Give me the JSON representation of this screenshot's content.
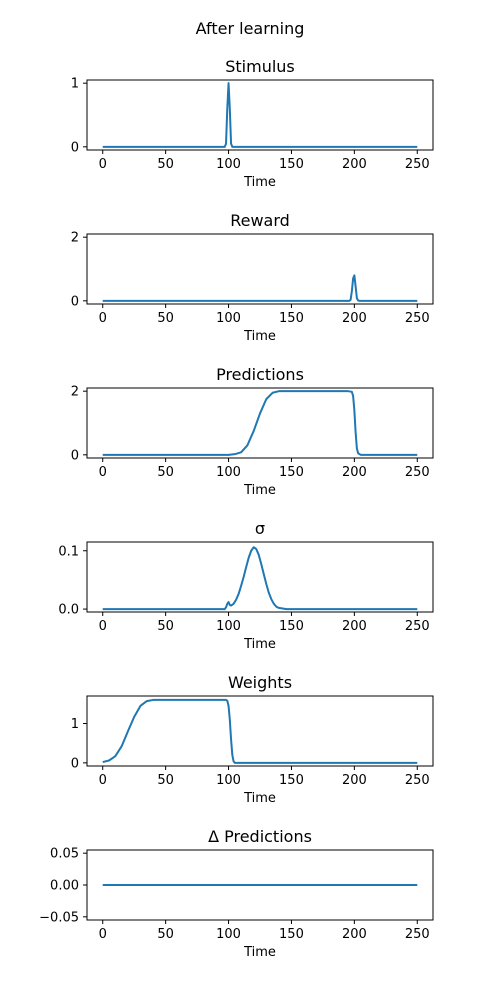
{
  "figure": {
    "title": "After learning"
  },
  "colors": {
    "line": "#1f77b4",
    "axes": "#000000",
    "background": "#ffffff"
  },
  "chart_data": [
    {
      "type": "line",
      "title": "Stimulus",
      "xlabel": "Time",
      "ylabel": "",
      "xlim": [
        -12.5,
        262.5
      ],
      "ylim": [
        -0.05,
        1.05
      ],
      "xticks": [
        0,
        50,
        100,
        150,
        200,
        250
      ],
      "yticks": [
        0,
        1
      ],
      "ytick_labels": [
        "0",
        "1"
      ],
      "grid": false,
      "series": [
        {
          "x": [
            0,
            97,
            98,
            99,
            100,
            101,
            102,
            103,
            250
          ],
          "y": [
            0,
            0,
            0.05,
            0.6,
            1.0,
            0.6,
            0.05,
            0,
            0
          ]
        }
      ]
    },
    {
      "type": "line",
      "title": "Reward",
      "xlabel": "Time",
      "ylabel": "",
      "xlim": [
        -12.5,
        262.5
      ],
      "ylim": [
        -0.1,
        2.1
      ],
      "xticks": [
        0,
        50,
        100,
        150,
        200,
        250
      ],
      "yticks": [
        0,
        2
      ],
      "ytick_labels": [
        "0",
        "2"
      ],
      "grid": false,
      "series": [
        {
          "x": [
            0,
            196,
            197,
            198,
            199,
            200,
            201,
            202,
            203,
            204,
            250
          ],
          "y": [
            0,
            0,
            0.03,
            0.3,
            0.7,
            0.8,
            0.45,
            0.08,
            0.01,
            0,
            0
          ]
        }
      ]
    },
    {
      "type": "line",
      "title": "Predictions",
      "xlabel": "Time",
      "ylabel": "",
      "xlim": [
        -12.5,
        262.5
      ],
      "ylim": [
        -0.1,
        2.1
      ],
      "xticks": [
        0,
        50,
        100,
        150,
        200,
        250
      ],
      "yticks": [
        0,
        2
      ],
      "ytick_labels": [
        "0",
        "2"
      ],
      "grid": false,
      "series": [
        {
          "x": [
            0,
            100,
            105,
            110,
            115,
            120,
            125,
            130,
            135,
            140,
            145,
            150,
            195,
            198,
            199,
            200,
            201,
            202,
            203,
            205,
            250
          ],
          "y": [
            0,
            0,
            0.02,
            0.08,
            0.3,
            0.75,
            1.3,
            1.75,
            1.95,
            2.0,
            2.0,
            2.0,
            2.0,
            1.98,
            1.85,
            1.4,
            0.7,
            0.2,
            0.05,
            0,
            0
          ]
        }
      ]
    },
    {
      "type": "line",
      "title": "σ",
      "xlabel": "Time",
      "ylabel": "",
      "xlim": [
        -12.5,
        262.5
      ],
      "ylim": [
        -0.005,
        0.115
      ],
      "xticks": [
        0,
        50,
        100,
        150,
        200,
        250
      ],
      "yticks": [
        0,
        0.1
      ],
      "ytick_labels": [
        "0.0",
        "0.1"
      ],
      "grid": false,
      "series": [
        {
          "x": [
            0,
            97,
            98,
            99,
            100,
            101,
            102,
            104,
            106,
            108,
            110,
            112,
            114,
            116,
            118,
            120,
            122,
            124,
            126,
            128,
            130,
            132,
            134,
            136,
            138,
            140,
            143,
            146,
            150,
            250
          ],
          "y": [
            0,
            0,
            0.003,
            0.009,
            0.012,
            0.007,
            0.006,
            0.009,
            0.016,
            0.026,
            0.04,
            0.055,
            0.072,
            0.088,
            0.1,
            0.106,
            0.103,
            0.093,
            0.077,
            0.06,
            0.043,
            0.028,
            0.017,
            0.009,
            0.004,
            0.002,
            0.001,
            0,
            0,
            0
          ]
        }
      ]
    },
    {
      "type": "line",
      "title": "Weights",
      "xlabel": "Time",
      "ylabel": "",
      "xlim": [
        -12.5,
        262.5
      ],
      "ylim": [
        -0.08,
        1.7
      ],
      "xticks": [
        0,
        50,
        100,
        150,
        200,
        250
      ],
      "yticks": [
        0,
        1
      ],
      "ytick_labels": [
        "0",
        "1"
      ],
      "grid": false,
      "series": [
        {
          "x": [
            0,
            5,
            10,
            15,
            20,
            25,
            30,
            35,
            40,
            45,
            50,
            98,
            99,
            100,
            101,
            102,
            103,
            104,
            105,
            250
          ],
          "y": [
            0.02,
            0.06,
            0.17,
            0.42,
            0.8,
            1.17,
            1.45,
            1.57,
            1.6,
            1.6,
            1.6,
            1.6,
            1.58,
            1.45,
            1.1,
            0.6,
            0.2,
            0.04,
            0,
            0
          ]
        }
      ]
    },
    {
      "type": "line",
      "title": "Δ Predictions",
      "xlabel": "Time",
      "ylabel": "",
      "xlim": [
        -12.5,
        262.5
      ],
      "ylim": [
        -0.055,
        0.055
      ],
      "xticks": [
        0,
        50,
        100,
        150,
        200,
        250
      ],
      "yticks": [
        -0.05,
        0,
        0.05
      ],
      "ytick_labels": [
        "−0.05",
        "0.00",
        "0.05"
      ],
      "grid": false,
      "series": [
        {
          "x": [
            0,
            250
          ],
          "y": [
            0,
            0
          ]
        }
      ]
    }
  ]
}
